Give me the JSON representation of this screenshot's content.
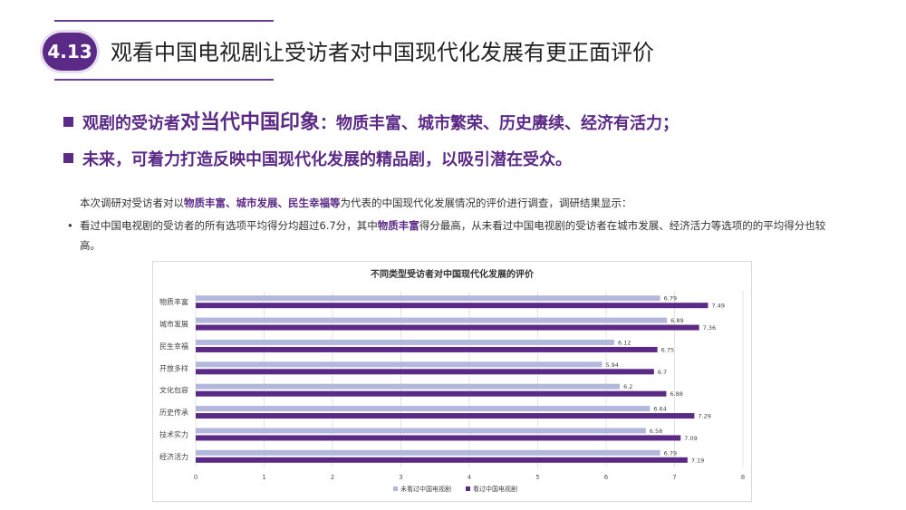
{
  "header": {
    "badge": "4.13",
    "title": "观看中国电视剧让受访者对中国现代化发展有更正面评价"
  },
  "headlines": [
    {
      "prefix": "观剧的受访者",
      "emphasis": "对当代中国印象",
      "suffix": "：物质丰富、城市繁荣、历史赓续、经济有活力；"
    },
    {
      "text": "未来，可着力打造反映中国现代化发展的精品剧，以吸引潜在受众。"
    }
  ],
  "intro": {
    "pre": "本次调研对受访者对以",
    "hl": "物质丰富、城市发展、民生幸福等",
    "post": "为代表的中国现代化发展情况的评价进行调查，调研结果显示："
  },
  "bullet": {
    "dot": "•",
    "pre": "看过中国电视剧的受访者的所有选项平均得分均超过6.7分，其中",
    "hl": "物质丰富",
    "post": "得分最高，从未看过中国电视剧的受访者在城市发展、经济活力等选项的的平均得分也较高。"
  },
  "chart_data": {
    "type": "bar",
    "orientation": "horizontal",
    "title": "不同类型受访者对中国现代化发展的评价",
    "categories": [
      "物质丰富",
      "城市发展",
      "民生幸福",
      "开放多样",
      "文化包容",
      "历史传承",
      "技术实力",
      "经济活力"
    ],
    "series": [
      {
        "name": "未看过中国电视剧",
        "color": "#b4b7dc",
        "values": [
          6.79,
          6.89,
          6.12,
          5.94,
          6.2,
          6.64,
          6.58,
          6.79
        ]
      },
      {
        "name": "看过中国电视剧",
        "color": "#5b2a86",
        "values": [
          7.49,
          7.36,
          6.75,
          6.7,
          6.88,
          7.29,
          7.09,
          7.19
        ]
      }
    ],
    "xlim": [
      0,
      8
    ],
    "xticks": [
      0,
      1,
      2,
      3,
      4,
      5,
      6,
      7,
      8
    ],
    "grid": true,
    "legend": "bottom"
  }
}
